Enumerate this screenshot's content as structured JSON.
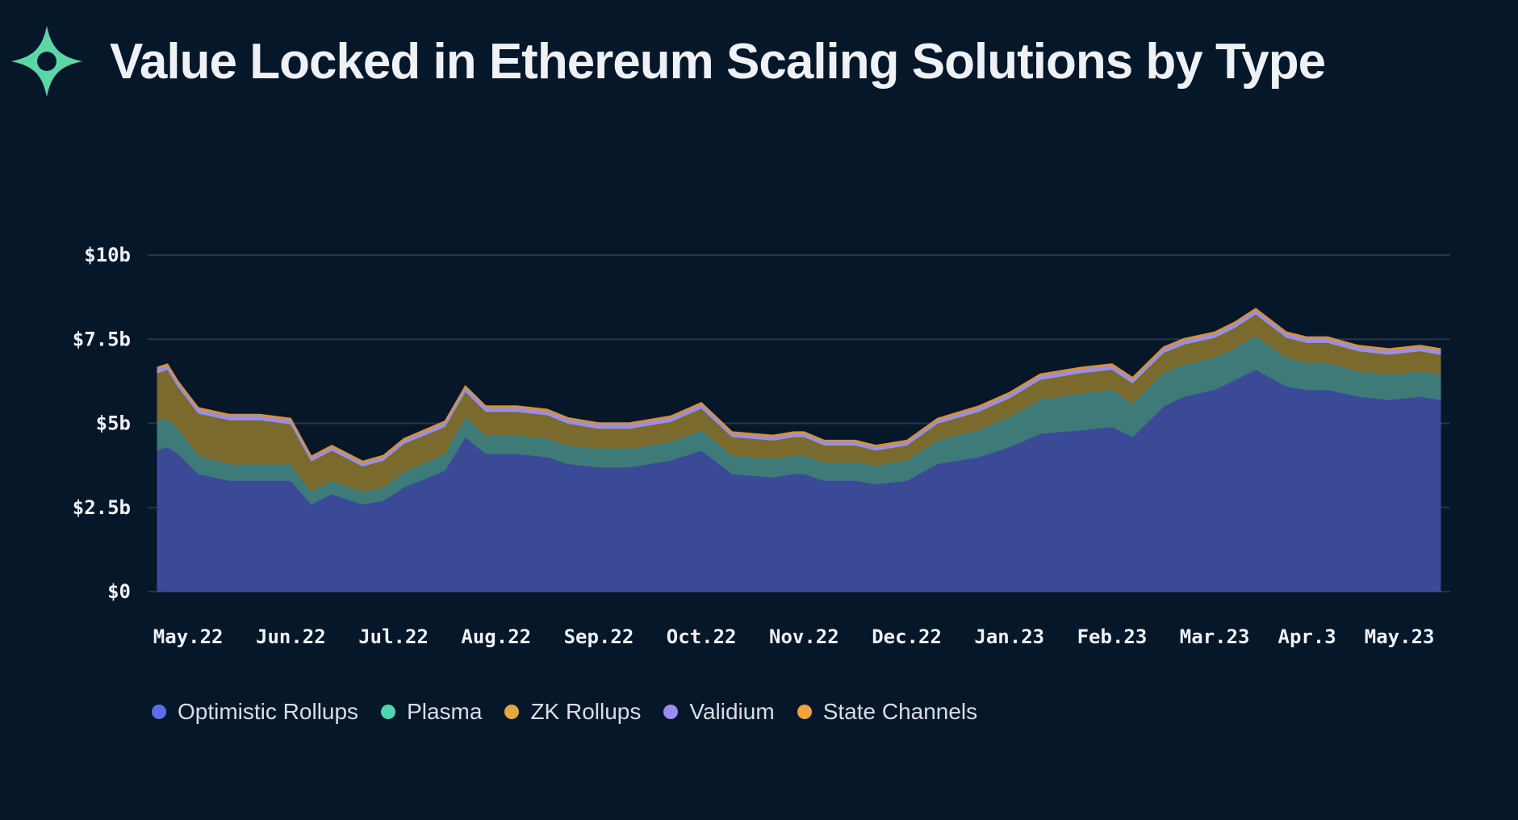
{
  "header": {
    "title": "Value Locked in Ethereum Scaling Solutions by Type",
    "logo_color": "#5cd6a8"
  },
  "background": "#07172a",
  "chart_data": {
    "type": "area",
    "stacked": true,
    "title": "Value Locked in Ethereum Scaling Solutions by Type",
    "xlabel": "",
    "ylabel": "",
    "ylim": [
      0,
      10
    ],
    "y_unit": "$b",
    "y_ticks": [
      0,
      2.5,
      5,
      7.5,
      10
    ],
    "y_tick_labels": [
      "$0",
      "$2.5b",
      "$5b",
      "$7.5b",
      "$10b"
    ],
    "x_tick_labels": [
      "May.22",
      "Jun.22",
      "Jul.22",
      "Aug.22",
      "Sep.22",
      "Oct.22",
      "Nov.22",
      "Dec.22",
      "Jan.23",
      "Feb.23",
      "Mar.23",
      "Apr.3",
      "May.23"
    ],
    "x_tick_positions": [
      0.3,
      1.3,
      2.3,
      3.3,
      4.3,
      5.3,
      6.3,
      7.3,
      8.3,
      9.3,
      10.3,
      11.2,
      12.1
    ],
    "x": [
      0,
      0.1,
      0.2,
      0.4,
      0.7,
      1.0,
      1.3,
      1.5,
      1.7,
      2.0,
      2.2,
      2.4,
      2.8,
      3.0,
      3.2,
      3.5,
      3.8,
      4.0,
      4.3,
      4.6,
      5.0,
      5.3,
      5.6,
      6.0,
      6.2,
      6.3,
      6.5,
      6.8,
      7.0,
      7.3,
      7.6,
      8.0,
      8.3,
      8.6,
      9.0,
      9.3,
      9.5,
      9.8,
      10.0,
      10.3,
      10.5,
      10.7,
      11.0,
      11.2,
      11.4,
      11.7,
      12.0,
      12.3,
      12.5
    ],
    "grid": true,
    "legend_position": "bottom-left",
    "series": [
      {
        "name": "Optimistic Rollups",
        "color": "#3a4a96",
        "legend_color": "#5b6ee8",
        "values": [
          4.2,
          4.3,
          4.1,
          3.5,
          3.3,
          3.3,
          3.3,
          2.6,
          2.9,
          2.6,
          2.7,
          3.1,
          3.6,
          4.6,
          4.1,
          4.1,
          4.0,
          3.8,
          3.7,
          3.7,
          3.9,
          4.2,
          3.5,
          3.4,
          3.5,
          3.5,
          3.3,
          3.3,
          3.2,
          3.3,
          3.8,
          4.0,
          4.3,
          4.7,
          4.8,
          4.9,
          4.6,
          5.5,
          5.8,
          6.0,
          6.3,
          6.6,
          6.1,
          6.0,
          6.0,
          5.8,
          5.7,
          5.8,
          5.7
        ]
      },
      {
        "name": "Plasma",
        "color": "#3d7a78",
        "legend_color": "#4fd6b0",
        "values": [
          0.9,
          0.85,
          0.75,
          0.55,
          0.5,
          0.5,
          0.48,
          0.38,
          0.4,
          0.38,
          0.4,
          0.45,
          0.5,
          0.6,
          0.55,
          0.55,
          0.55,
          0.55,
          0.55,
          0.55,
          0.55,
          0.6,
          0.55,
          0.55,
          0.55,
          0.55,
          0.55,
          0.55,
          0.55,
          0.6,
          0.7,
          0.8,
          0.9,
          1.0,
          1.1,
          1.1,
          1.0,
          1.0,
          0.95,
          0.95,
          0.95,
          1.0,
          0.85,
          0.8,
          0.8,
          0.75,
          0.75,
          0.75,
          0.75
        ]
      },
      {
        "name": "ZK Rollups",
        "color": "#7a6a2e",
        "legend_color": "#e3a93c",
        "values": [
          1.4,
          1.45,
          1.25,
          1.25,
          1.3,
          1.3,
          1.2,
          0.9,
          0.9,
          0.75,
          0.8,
          0.85,
          0.8,
          0.75,
          0.7,
          0.7,
          0.7,
          0.65,
          0.6,
          0.6,
          0.6,
          0.65,
          0.55,
          0.55,
          0.55,
          0.55,
          0.5,
          0.5,
          0.45,
          0.45,
          0.5,
          0.55,
          0.55,
          0.6,
          0.6,
          0.6,
          0.6,
          0.6,
          0.6,
          0.6,
          0.6,
          0.65,
          0.6,
          0.6,
          0.6,
          0.6,
          0.6,
          0.6,
          0.6
        ]
      },
      {
        "name": "Validium",
        "color": "#9b8ee0",
        "legend_color": "#9d8cf0",
        "values": [
          0.12,
          0.12,
          0.12,
          0.12,
          0.12,
          0.12,
          0.12,
          0.1,
          0.1,
          0.1,
          0.1,
          0.1,
          0.12,
          0.12,
          0.12,
          0.12,
          0.12,
          0.12,
          0.12,
          0.12,
          0.12,
          0.12,
          0.1,
          0.1,
          0.1,
          0.1,
          0.1,
          0.1,
          0.1,
          0.1,
          0.1,
          0.12,
          0.12,
          0.12,
          0.12,
          0.12,
          0.12,
          0.12,
          0.12,
          0.12,
          0.12,
          0.12,
          0.12,
          0.12,
          0.12,
          0.12,
          0.12,
          0.12,
          0.12
        ]
      },
      {
        "name": "State Channels",
        "color": "#d4913a",
        "legend_color": "#f0a23c",
        "values": [
          0.05,
          0.05,
          0.05,
          0.05,
          0.05,
          0.05,
          0.05,
          0.05,
          0.05,
          0.05,
          0.05,
          0.05,
          0.05,
          0.05,
          0.05,
          0.05,
          0.05,
          0.05,
          0.05,
          0.05,
          0.05,
          0.05,
          0.05,
          0.05,
          0.05,
          0.05,
          0.05,
          0.05,
          0.05,
          0.05,
          0.05,
          0.05,
          0.05,
          0.05,
          0.05,
          0.05,
          0.05,
          0.05,
          0.05,
          0.05,
          0.05,
          0.05,
          0.05,
          0.05,
          0.05,
          0.05,
          0.05,
          0.05,
          0.05
        ]
      }
    ]
  }
}
